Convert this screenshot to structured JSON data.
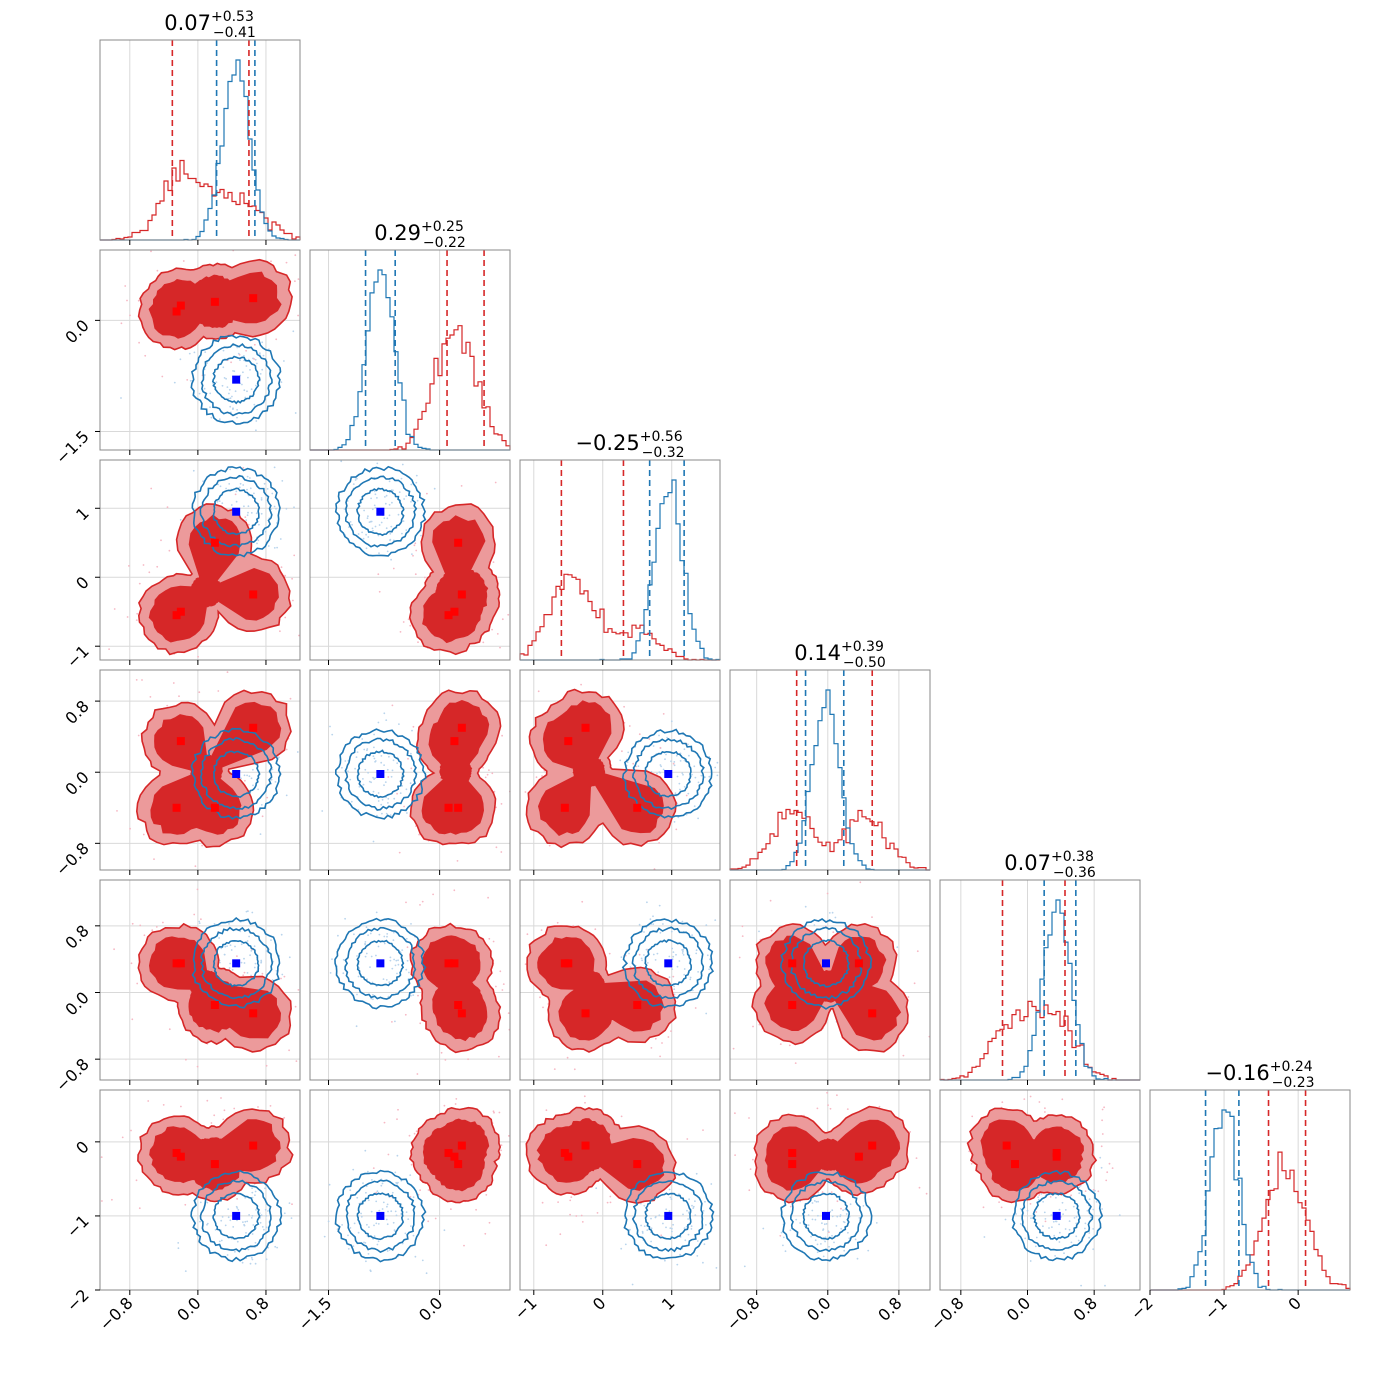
{
  "chart_data": {
    "type": "corner",
    "dimensions": 6,
    "colors": {
      "red": "#d62728",
      "red_light": "#ec9a9b",
      "blue": "#1f77b4",
      "marker_red": "#ff0000",
      "marker_blue": "#0000ff"
    },
    "titles": [
      {
        "value": "0.07",
        "plus": "+0.53",
        "minus": "−0.41"
      },
      {
        "value": "0.29",
        "plus": "+0.25",
        "minus": "−0.22"
      },
      {
        "value": "−0.25",
        "plus": "+0.56",
        "minus": "−0.32"
      },
      {
        "value": "0.14",
        "plus": "+0.39",
        "minus": "−0.50"
      },
      {
        "value": "0.07",
        "plus": "+0.38",
        "minus": "−0.36"
      },
      {
        "value": "−0.16",
        "plus": "+0.24",
        "minus": "−0.23"
      }
    ],
    "axes": [
      {
        "range": [
          -1.15,
          1.2
        ],
        "ticks": [
          -0.8,
          0.0,
          0.8
        ],
        "tick_labels": [
          "−0.8",
          "0.0",
          "0.8"
        ]
      },
      {
        "range": [
          -1.75,
          0.95
        ],
        "ticks": [
          -1.5,
          0.0
        ],
        "tick_labels": [
          "−1.5",
          "0.0"
        ]
      },
      {
        "range": [
          -1.2,
          1.7
        ],
        "ticks": [
          -1,
          0,
          1
        ],
        "tick_labels": [
          "−1",
          "0",
          "1"
        ]
      },
      {
        "range": [
          -1.1,
          1.15
        ],
        "ticks": [
          -0.8,
          0.0,
          0.8
        ],
        "tick_labels": [
          "−0.8",
          "0.0",
          "0.8"
        ]
      },
      {
        "range": [
          -1.05,
          1.35
        ],
        "ticks": [
          -0.8,
          0.0,
          0.8
        ],
        "tick_labels": [
          "−0.8",
          "0.0",
          "0.8"
        ]
      },
      {
        "range": [
          -2.0,
          0.7
        ],
        "ticks": [
          -2,
          -1,
          0
        ],
        "tick_labels": [
          "−2",
          "−1",
          "0"
        ]
      }
    ],
    "red_modes": [
      [
        -0.2,
        0.2,
        -0.5,
        0.35,
        0.35,
        -0.2
      ],
      [
        0.2,
        0.25,
        0.5,
        -0.4,
        -0.15,
        -0.3
      ],
      [
        0.65,
        0.3,
        -0.25,
        0.5,
        -0.25,
        -0.05
      ],
      [
        -0.25,
        0.12,
        -0.55,
        -0.4,
        0.35,
        -0.15
      ]
    ],
    "blue_mode": [
      0.45,
      -0.8,
      0.95,
      -0.02,
      0.35,
      -1.0
    ],
    "red_quantiles": [
      [
        -0.3,
        0.6
      ],
      [
        0.1,
        0.6
      ],
      [
        -0.6,
        0.3
      ],
      [
        -0.35,
        0.5
      ],
      [
        -0.3,
        0.45
      ],
      [
        -0.4,
        0.1
      ]
    ],
    "blue_quantiles": [
      [
        0.22,
        0.67
      ],
      [
        -1.0,
        -0.6
      ],
      [
        0.68,
        1.18
      ],
      [
        -0.25,
        0.18
      ],
      [
        0.2,
        0.58
      ],
      [
        -1.25,
        -0.8
      ]
    ],
    "gridlines": true
  }
}
